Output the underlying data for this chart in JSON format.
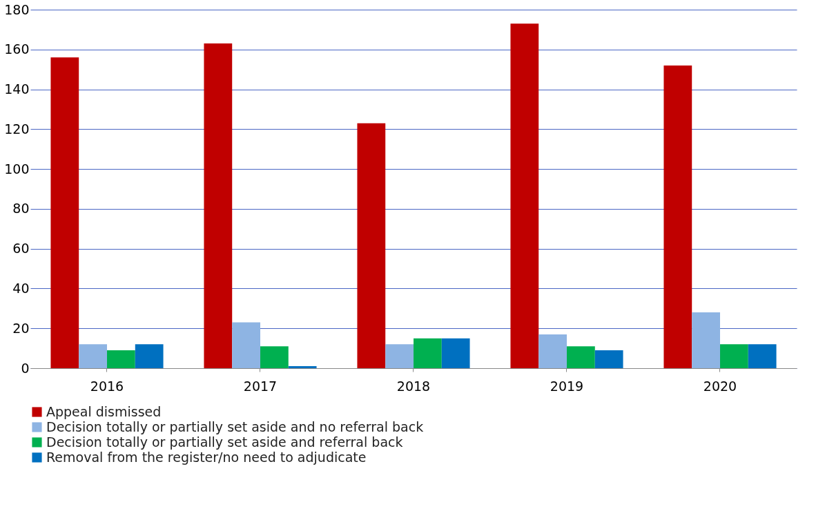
{
  "chart_data": {
    "type": "bar",
    "categories": [
      "2016",
      "2017",
      "2018",
      "2019",
      "2020"
    ],
    "series": [
      {
        "name": "Appeal dismissed",
        "color": "#c00000",
        "values": [
          156,
          163,
          123,
          173,
          152
        ]
      },
      {
        "name": "Decision totally or partially set aside and no referral back",
        "color": "#8eb4e3",
        "values": [
          12,
          23,
          12,
          17,
          28
        ]
      },
      {
        "name": "Decision totally or partially set aside and referral back",
        "color": "#00b050",
        "values": [
          9,
          11,
          15,
          11,
          12
        ]
      },
      {
        "name": "Removal from the register/no need to adjudicate",
        "color": "#0070c0",
        "values": [
          12,
          1,
          15,
          9,
          12
        ]
      }
    ],
    "ylim": [
      0,
      180
    ],
    "yticks": [
      0,
      20,
      40,
      60,
      80,
      100,
      120,
      140,
      160,
      180
    ],
    "grid": "y",
    "legend": "bottom"
  }
}
